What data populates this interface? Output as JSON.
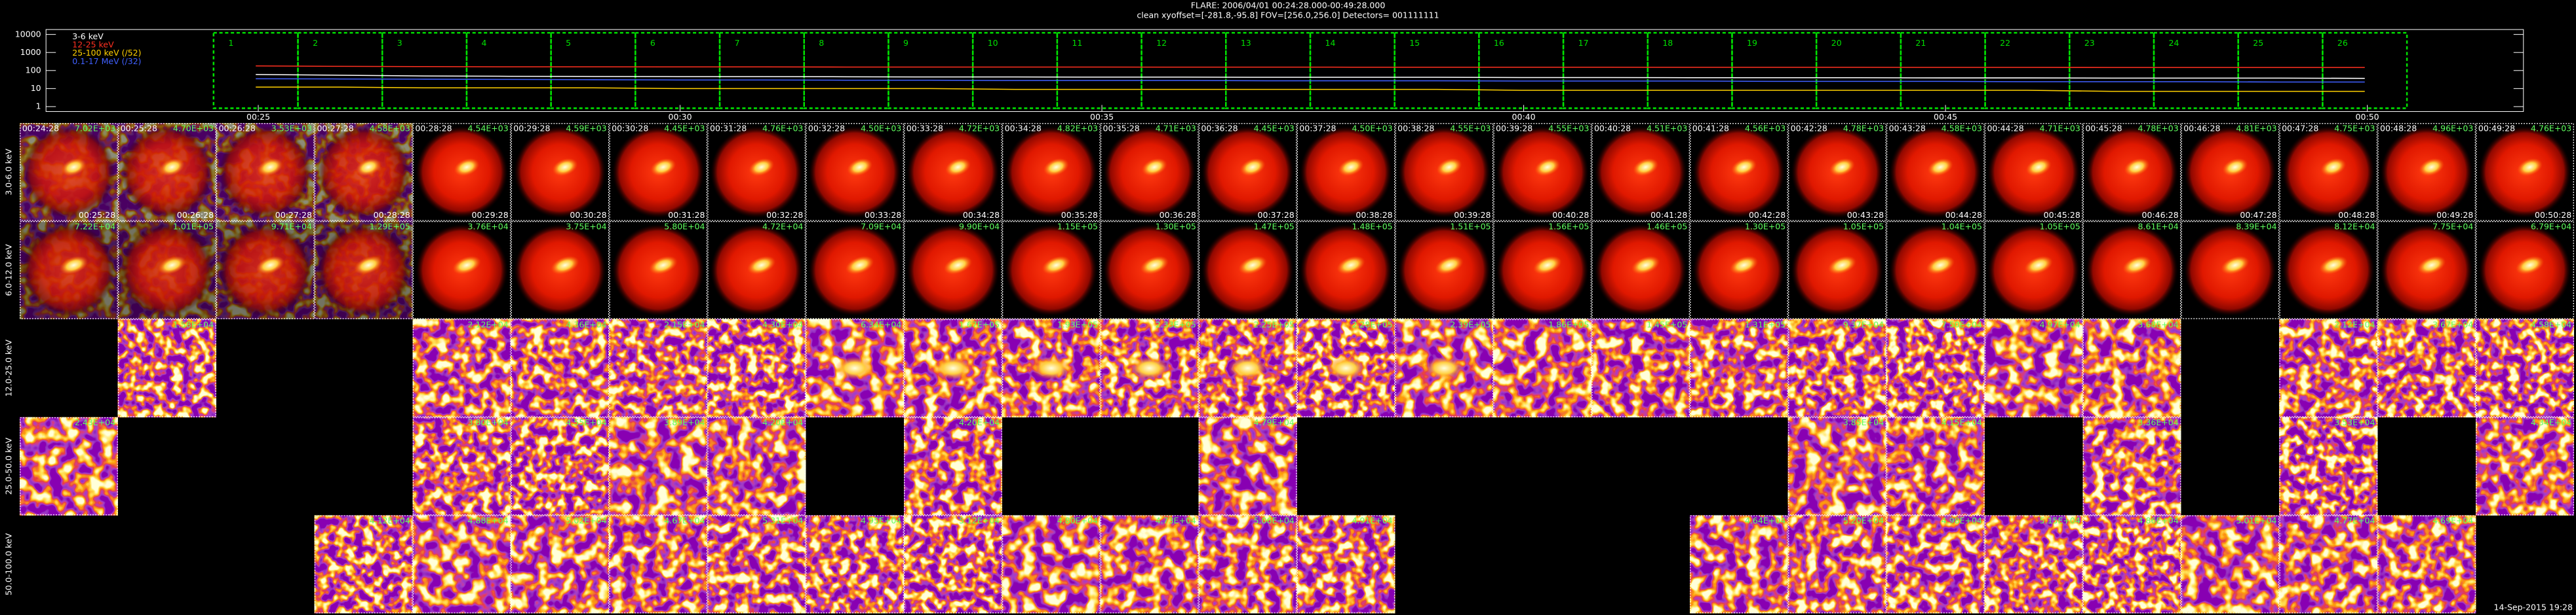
{
  "header": {
    "line1": "FLARE: 2006/04/01 00:24:28.000-00:49:28.000",
    "line2": "clean    xyoffset=[-281.8,-95.8]    FOV=[256.0,256.0]    Detectors= 001111111"
  },
  "lightcurve": {
    "ylim": [
      1,
      10000
    ],
    "yticks": [
      10000,
      1000,
      100,
      10,
      1
    ],
    "log": true,
    "series": [
      {
        "name": "3-6 keV",
        "color": "#ffffff",
        "values": [
          60,
          55,
          50,
          48,
          47,
          46,
          46,
          45,
          44,
          44,
          43,
          43,
          42,
          42,
          42,
          41,
          41,
          40,
          40,
          40,
          39,
          39,
          38,
          38,
          38,
          37
        ]
      },
      {
        "name": "12-25 keV",
        "color": "#ff3020",
        "values": [
          180,
          170,
          165,
          160,
          160,
          158,
          158,
          156,
          156,
          155,
          155,
          154,
          154,
          153,
          153,
          152,
          152,
          150,
          150,
          150,
          149,
          149,
          148,
          148,
          147,
          147
        ]
      },
      {
        "name": "25-100 keV (/52)",
        "color": "#ffd000",
        "values": [
          12,
          12,
          11,
          11,
          11,
          10,
          10,
          10,
          10,
          9,
          9,
          9,
          9,
          9,
          9,
          8,
          8,
          8,
          8,
          8,
          8,
          8,
          7,
          7,
          7,
          7
        ]
      },
      {
        "name": "0.1-17 MeV (/32)",
        "color": "#4060ff",
        "values": [
          35,
          34,
          33,
          32,
          31,
          30,
          30,
          29,
          29,
          28,
          28,
          28,
          27,
          27,
          27,
          26,
          26,
          26,
          25,
          25,
          25,
          24,
          24,
          24,
          23,
          23
        ]
      }
    ],
    "intervals": [
      "1",
      "2",
      "3",
      "4",
      "5",
      "6",
      "7",
      "8",
      "9",
      "10",
      "11",
      "12",
      "13",
      "14",
      "15",
      "16",
      "17",
      "18",
      "19",
      "20",
      "21",
      "22",
      "23",
      "24",
      "25",
      "26"
    ],
    "time_ticks": [
      "00:25",
      "00:30",
      "00:35",
      "00:40",
      "00:45",
      "00:50"
    ]
  },
  "grid": {
    "start_times": [
      "00:24:28",
      "00:25:28",
      "00:26:28",
      "00:27:28",
      "00:28:28",
      "00:29:28",
      "00:30:28",
      "00:31:28",
      "00:32:28",
      "00:33:28",
      "00:34:28",
      "00:35:28",
      "00:36:28",
      "00:37:28",
      "00:38:28",
      "00:39:28",
      "00:40:28",
      "00:41:28",
      "00:42:28",
      "00:43:28",
      "00:44:28",
      "00:45:28",
      "00:46:28",
      "00:47:28",
      "00:48:28",
      "00:49:28"
    ],
    "end_times": [
      "00:25:28",
      "00:26:28",
      "00:27:28",
      "00:28:28",
      "00:29:28",
      "00:30:28",
      "00:31:28",
      "00:32:28",
      "00:33:28",
      "00:34:28",
      "00:35:28",
      "00:36:28",
      "00:37:28",
      "00:38:28",
      "00:39:28",
      "00:40:28",
      "00:41:28",
      "00:42:28",
      "00:43:28",
      "00:44:28",
      "00:45:28",
      "00:46:28",
      "00:47:28",
      "00:48:28",
      "00:49:28",
      "00:50:28"
    ],
    "rows": [
      {
        "label": "3.0-6.0 keV",
        "fluxes": [
          "7.02E+03",
          "4.70E+03",
          "3.53E+03",
          "4.58E+03",
          "4.54E+03",
          "4.59E+03",
          "4.45E+03",
          "4.76E+03",
          "4.50E+03",
          "4.72E+03",
          "4.82E+03",
          "4.71E+03",
          "4.45E+03",
          "4.50E+03",
          "4.55E+03",
          "4.55E+03",
          "4.51E+03",
          "4.56E+03",
          "4.78E+03",
          "4.58E+03",
          "4.71E+03",
          "4.78E+03",
          "4.81E+03",
          "4.75E+03",
          "4.96E+03",
          "4.76E+03"
        ]
      },
      {
        "label": "6.0-12.0 keV",
        "fluxes": [
          "7.22E+04",
          "1.01E+05",
          "9.71E+04",
          "1.29E+05",
          "3.76E+04",
          "3.75E+04",
          "5.80E+04",
          "4.72E+04",
          "7.09E+04",
          "9.90E+04",
          "1.15E+05",
          "1.30E+05",
          "1.47E+05",
          "1.48E+05",
          "1.51E+05",
          "1.56E+05",
          "1.46E+05",
          "1.30E+05",
          "1.05E+05",
          "1.04E+05",
          "1.05E+05",
          "8.61E+04",
          "8.39E+04",
          "8.12E+04",
          "7.75E+04",
          "6.79E+04"
        ]
      },
      {
        "label": "12.0-25.0 keV",
        "fluxes": [
          null,
          "1.58E+04",
          null,
          null,
          "2.12E+04",
          "4.36E+04",
          "2.15E+04",
          "4.30E+04",
          "6.34E+04",
          "1.67E+05",
          "1.93E+05",
          "2.33E+05",
          "2.25E+05",
          "2.28E+05",
          "2.39E+05",
          "1.86E+05",
          "1.45E+05",
          "1.31E+05",
          "9.37E+04",
          "7.50E+04",
          "4.97E+04",
          "3.68E+04",
          null,
          "2.12E+04",
          "3.67E+04",
          "4.58E+04"
        ]
      },
      {
        "label": "25.0-50.0 keV",
        "fluxes": [
          "2.43E+04",
          null,
          null,
          null,
          "3.80E+04",
          "4.55E+04",
          "3.89E+04",
          "4.20E+04",
          null,
          "4.20E+04",
          null,
          null,
          "4.79E+04",
          null,
          null,
          null,
          null,
          null,
          "3.85E+04",
          "4.15E+04",
          null,
          "3.36E+04",
          null,
          "3.53E+04",
          null,
          "4.34E+04"
        ]
      },
      {
        "label": "50.0-100.0 keV",
        "fluxes": [
          null,
          null,
          null,
          "4.12E+04",
          "4.88E+04",
          "5.02E+04",
          "4.67E+04",
          "5.31E+04",
          "4.95E+04",
          "5.12E+04",
          "4.80E+04",
          "4.73E+04",
          "5.06E+04",
          "4.91E+04",
          null,
          null,
          null,
          "4.64E+04",
          "5.20E+04",
          "4.98E+04",
          "5.15E+04",
          "4.86E+04",
          "5.01E+04",
          "4.77E+04",
          "4.69E+04",
          null
        ]
      }
    ]
  },
  "footer": "14-Sep-2015 19:28"
}
